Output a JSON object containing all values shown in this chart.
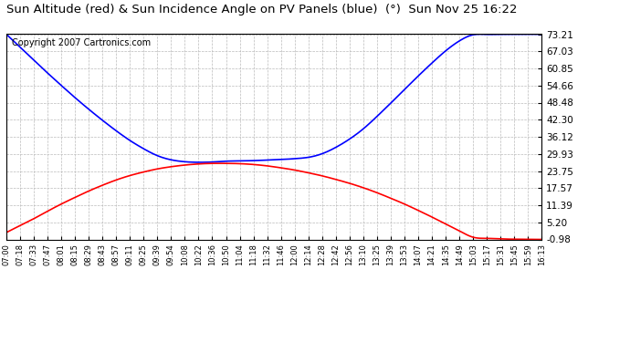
{
  "title": "Sun Altitude (red) & Sun Incidence Angle on PV Panels (blue)  (°)  Sun Nov 25 16:22",
  "copyright": "Copyright 2007 Cartronics.com",
  "yticks": [
    -0.98,
    5.2,
    11.39,
    17.57,
    23.75,
    29.93,
    36.12,
    42.3,
    48.48,
    54.66,
    60.85,
    67.03,
    73.21
  ],
  "ymin": -0.98,
  "ymax": 73.21,
  "bg_color": "#ffffff",
  "plot_bg_color": "#ffffff",
  "grid_color": "#bbbbbb",
  "blue_color": "#0000ff",
  "red_color": "#ff0000",
  "title_fontsize": 9.5,
  "copyright_fontsize": 7,
  "xtick_fontsize": 6,
  "ytick_fontsize": 7.5,
  "line_width": 1.2,
  "xticks": [
    "07:00",
    "07:18",
    "07:33",
    "07:47",
    "08:01",
    "08:15",
    "08:29",
    "08:43",
    "08:57",
    "09:11",
    "09:25",
    "09:39",
    "09:54",
    "10:08",
    "10:22",
    "10:36",
    "10:50",
    "11:04",
    "11:18",
    "11:32",
    "11:46",
    "12:00",
    "12:14",
    "12:28",
    "12:42",
    "12:56",
    "13:10",
    "13:25",
    "13:39",
    "13:53",
    "14:07",
    "14:21",
    "14:35",
    "14:49",
    "15:03",
    "15:17",
    "15:31",
    "15:45",
    "15:59",
    "16:13"
  ],
  "sun_altitude_raw": [
    1.5,
    4.0,
    6.5,
    9.2,
    11.8,
    14.2,
    16.5,
    18.6,
    20.5,
    22.1,
    23.4,
    24.5,
    25.3,
    25.9,
    26.3,
    26.5,
    26.5,
    26.4,
    26.1,
    25.6,
    24.9,
    24.1,
    23.1,
    22.0,
    20.7,
    19.3,
    17.7,
    15.9,
    13.9,
    11.8,
    9.5,
    7.1,
    4.6,
    2.1,
    -0.2,
    -0.6,
    -0.8,
    -0.9,
    -0.95,
    -0.98
  ],
  "incidence_angle_raw": [
    73.21,
    68.5,
    63.8,
    59.2,
    54.7,
    50.3,
    46.1,
    42.1,
    38.3,
    34.8,
    31.8,
    29.3,
    27.8,
    27.1,
    26.9,
    27.0,
    27.3,
    27.4,
    27.5,
    27.7,
    27.9,
    28.2,
    28.7,
    30.0,
    32.3,
    35.3,
    39.0,
    43.5,
    48.3,
    53.2,
    58.1,
    62.8,
    67.2,
    70.8,
    73.0,
    73.15,
    73.18,
    73.2,
    73.21,
    73.21
  ]
}
